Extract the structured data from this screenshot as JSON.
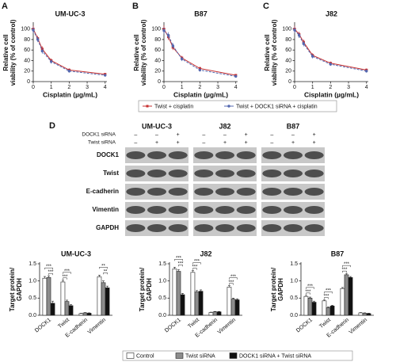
{
  "chart_data": [
    {
      "type": "line",
      "panel": "A",
      "title": "UM-UC-3",
      "ylabel": [
        "Relative cell",
        "viability (% of control)"
      ],
      "xlabel": "Cisplatin (µg/mL)",
      "x": [
        0,
        0.25,
        0.5,
        1,
        2,
        4
      ],
      "xlim": [
        0,
        4.1
      ],
      "xticks": [
        0,
        1,
        2,
        3,
        4
      ],
      "ylim": [
        0,
        110
      ],
      "yticks": [
        0,
        20,
        40,
        60,
        80,
        100
      ],
      "series": [
        {
          "name": "Twist + cisplatin",
          "color": "#c62f2f",
          "marker": "square",
          "values": [
            100,
            82,
            62,
            40,
            22,
            14
          ],
          "errors": [
            6,
            5,
            5,
            4,
            3,
            2
          ]
        },
        {
          "name": "Twist + DOCK1 siRNA + cisplatin",
          "color": "#5468b0",
          "marker": "circle",
          "values": [
            98,
            80,
            58,
            38,
            20,
            12
          ],
          "errors": [
            6,
            5,
            5,
            4,
            3,
            2
          ]
        }
      ]
    },
    {
      "type": "line",
      "panel": "B",
      "title": "B87",
      "ylabel": [
        "Relative cell",
        "viability (% of control)"
      ],
      "xlabel": "Cisplatin (µg/mL)",
      "x": [
        0,
        0.25,
        0.5,
        1,
        2,
        4
      ],
      "xlim": [
        0,
        4.1
      ],
      "xticks": [
        0,
        1,
        2,
        3,
        4
      ],
      "ylim": [
        0,
        110
      ],
      "yticks": [
        0,
        20,
        40,
        60,
        80,
        100
      ],
      "series": [
        {
          "color": "#c62f2f",
          "marker": "square",
          "values": [
            100,
            85,
            65,
            45,
            25,
            12
          ],
          "errors": [
            7,
            6,
            5,
            4,
            3,
            2
          ]
        },
        {
          "color": "#5468b0",
          "marker": "circle",
          "values": [
            97,
            88,
            68,
            43,
            22,
            10
          ],
          "errors": [
            7,
            6,
            5,
            4,
            3,
            2
          ]
        }
      ]
    },
    {
      "type": "line",
      "panel": "C",
      "title": "J82",
      "ylabel": [
        "Relative cell",
        "viability (% of control)"
      ],
      "xlabel": "Cisplatin (µg/mL)",
      "x": [
        0,
        0.25,
        0.5,
        1,
        2,
        4
      ],
      "xlim": [
        0,
        4.1
      ],
      "xticks": [
        0,
        1,
        2,
        3,
        4
      ],
      "ylim": [
        0,
        110
      ],
      "yticks": [
        0,
        20,
        40,
        60,
        80,
        100
      ],
      "series": [
        {
          "color": "#c62f2f",
          "marker": "square",
          "values": [
            100,
            90,
            75,
            50,
            35,
            22
          ],
          "errors": [
            6,
            5,
            5,
            4,
            3,
            3
          ]
        },
        {
          "color": "#5468b0",
          "marker": "circle",
          "values": [
            98,
            88,
            72,
            48,
            33,
            20
          ],
          "errors": [
            6,
            5,
            5,
            4,
            3,
            3
          ]
        }
      ]
    },
    {
      "type": "bar",
      "title": "UM-UC-3",
      "ylabel": [
        "Target protein/",
        "GAPDH"
      ],
      "categories": [
        "DOCK1",
        "Twist",
        "E-cadherin",
        "Vimentin"
      ],
      "ylim": [
        0,
        1.5
      ],
      "yticks": [
        {
          "value": 0,
          "label": "0.0"
        },
        0.5,
        {
          "value": 1,
          "label": "1.0"
        },
        1.5
      ],
      "series": [
        {
          "name": "Control",
          "color": "#ffffff",
          "values": [
            1.08,
            0.97,
            0.05,
            1.12
          ],
          "errors": [
            0.05,
            0.05,
            0.01,
            0.05
          ]
        },
        {
          "name": "Twist siRNA",
          "color": "#8c8c8c",
          "values": [
            1.1,
            0.4,
            0.07,
            0.95
          ],
          "errors": [
            0.05,
            0.04,
            0.01,
            0.05
          ]
        },
        {
          "name": "DOCK1 siRNA + Twist siRNA",
          "color": "#111111",
          "values": [
            0.35,
            0.28,
            0.06,
            0.8
          ],
          "errors": [
            0.06,
            0.03,
            0.01,
            0.05
          ]
        }
      ],
      "annotations": [
        {
          "text": "***",
          "category": 0,
          "series": [
            1,
            2
          ]
        },
        {
          "text": "***",
          "category": 0,
          "series": [
            0,
            2
          ]
        },
        {
          "text": "***",
          "category": 1,
          "series": [
            0,
            1
          ]
        },
        {
          "text": "***",
          "category": 1,
          "series": [
            0,
            2
          ]
        },
        {
          "text": "**",
          "category": 3,
          "series": [
            1,
            2
          ]
        },
        {
          "text": "**",
          "category": 3,
          "series": [
            0,
            2
          ]
        }
      ]
    },
    {
      "type": "bar",
      "title": "J82",
      "ylabel": [
        "Target protein/",
        "GAPDH"
      ],
      "categories": [
        "DOCK1",
        "Twist",
        "E-cadherin",
        "Vimentin"
      ],
      "ylim": [
        0,
        1.5
      ],
      "yticks": [
        {
          "value": 0,
          "label": "0.0"
        },
        0.5,
        {
          "value": 1,
          "label": "1.0"
        },
        1.5
      ],
      "series": [
        {
          "color": "#ffffff",
          "values": [
            1.35,
            1.25,
            0.08,
            0.82
          ],
          "errors": [
            0.05,
            0.05,
            0.01,
            0.04
          ]
        },
        {
          "color": "#8c8c8c",
          "values": [
            1.28,
            0.68,
            0.1,
            0.47
          ],
          "errors": [
            0.05,
            0.04,
            0.01,
            0.03
          ]
        },
        {
          "color": "#111111",
          "values": [
            0.6,
            0.7,
            0.1,
            0.45
          ],
          "errors": [
            0.04,
            0.04,
            0.01,
            0.03
          ]
        }
      ],
      "annotations": [
        {
          "text": "***",
          "category": 0,
          "series": [
            1,
            2
          ]
        },
        {
          "text": "***",
          "category": 0,
          "series": [
            0,
            2
          ]
        },
        {
          "text": "***",
          "category": 1,
          "series": [
            0,
            1
          ]
        },
        {
          "text": "***",
          "category": 1,
          "series": [
            0,
            2
          ]
        },
        {
          "text": "***",
          "category": 3,
          "series": [
            0,
            1
          ]
        },
        {
          "text": "***",
          "category": 3,
          "series": [
            0,
            2
          ]
        }
      ]
    },
    {
      "type": "bar",
      "title": "B87",
      "ylabel": [
        "Target protein/",
        "GAPDH"
      ],
      "categories": [
        "DOCK1",
        "Twist",
        "E-cadherin",
        "Vimentin"
      ],
      "ylim": [
        0,
        1.5
      ],
      "yticks": [
        {
          "value": 0,
          "label": "0.0"
        },
        0.5,
        {
          "value": 1,
          "label": "1.0"
        },
        1.5
      ],
      "series": [
        {
          "color": "#ffffff",
          "values": [
            0.55,
            0.42,
            0.78,
            0.07
          ],
          "errors": [
            0.03,
            0.03,
            0.03,
            0.01
          ]
        },
        {
          "color": "#8c8c8c",
          "values": [
            0.5,
            0.22,
            1.18,
            0.06
          ],
          "errors": [
            0.03,
            0.02,
            0.04,
            0.01
          ]
        },
        {
          "color": "#111111",
          "values": [
            0.38,
            0.27,
            1.1,
            0.05
          ],
          "errors": [
            0.03,
            0.02,
            0.03,
            0.01
          ]
        }
      ],
      "annotations": [
        {
          "text": "***",
          "category": 0,
          "series": [
            0,
            1
          ]
        },
        {
          "text": "***",
          "category": 0,
          "series": [
            0,
            2
          ]
        },
        {
          "text": "***",
          "category": 1,
          "series": [
            0,
            1
          ]
        },
        {
          "text": "***",
          "category": 1,
          "series": [
            0,
            2
          ]
        },
        {
          "text": "***",
          "category": 2,
          "series": [
            0,
            1
          ]
        },
        {
          "text": "***",
          "category": 2,
          "series": [
            0,
            2
          ]
        }
      ]
    }
  ],
  "blot": {
    "panel": "D",
    "cell_lines": [
      "UM-UC-3",
      "J82",
      "B87"
    ],
    "conditions": [
      {
        "name": "DOCK1 siRNA",
        "signs": [
          "–",
          "–",
          "+"
        ]
      },
      {
        "name": "Twist siRNA",
        "signs": [
          "–",
          "+",
          "+"
        ]
      }
    ],
    "proteins": [
      "DOCK1",
      "Twist",
      "E-cadherin",
      "Vimentin",
      "GAPDH"
    ]
  }
}
